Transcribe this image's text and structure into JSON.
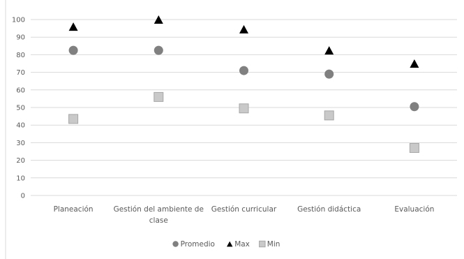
{
  "chart_data": {
    "type": "scatter",
    "title": "",
    "categories": [
      "Planeación",
      "Gestión del ambiente de clase",
      "Gestión curricular",
      "Gestión didáctica",
      "Evaluación"
    ],
    "category_lines": [
      [
        "Planeación"
      ],
      [
        "Gestión del ambiente de",
        "clase"
      ],
      [
        "Gestión curricular"
      ],
      [
        "Gestión didáctica"
      ],
      [
        "Evaluación"
      ]
    ],
    "yticks": [
      "0",
      "10",
      "20",
      "30",
      "40",
      "50",
      "60",
      "70",
      "80",
      "90",
      "100"
    ],
    "ylim": [
      0,
      100
    ],
    "grid": true,
    "legend_position": "bottom",
    "series": [
      {
        "name": "Promedio",
        "marker": "circle",
        "color": "#808080",
        "values": [
          82.5,
          82.5,
          71,
          69,
          50.5
        ]
      },
      {
        "name": "Max",
        "marker": "triangle",
        "color": "#000000",
        "values": [
          96,
          100,
          94.5,
          82.5,
          75
        ]
      },
      {
        "name": "Min",
        "marker": "square",
        "color": "#c9c9c9",
        "values": [
          43.5,
          56,
          49.5,
          45.5,
          27
        ]
      }
    ]
  }
}
